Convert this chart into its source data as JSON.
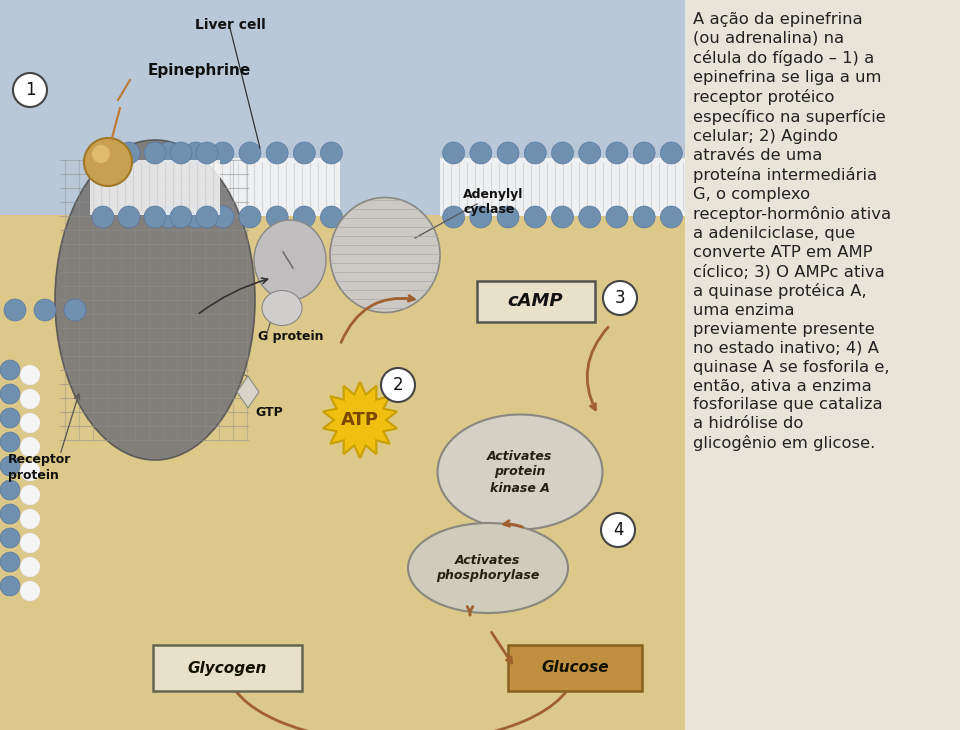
{
  "bg_color": "#dcc888",
  "exterior_color": "#b8c8d8",
  "receptor_dark": "#7a7878",
  "receptor_light": "#989898",
  "membrane_bead": "#7090b0",
  "membrane_tail": "#f0f0f0",
  "g_protein_fill": "#c8c8c8",
  "adenylyl_fill": "#d0ccc8",
  "camp_fill": "#e8e0c8",
  "atp_yellow": "#f0c010",
  "atp_spike": "#c8a000",
  "atp_text": "#7a4800",
  "ellipse_fill": "#d0ccc0",
  "ellipse_edge": "#888880",
  "glycogen_fill": "#e8e0c8",
  "glucose_fill": "#c09040",
  "arrow_brown": "#a06030",
  "text_dark": "#222222",
  "text_medium": "#333333",
  "step_circle_fill": "#ffffff",
  "step_circle_edge": "#444444",
  "label_color": "#111111",
  "epi_fill": "#c8a050",
  "epi_edge": "#a07828",
  "right_panel_bg": "#e8e4d8",
  "description_text": "A ação da epinefrina\n(ou adrenalina) na\ncélula do fígado – 1) a\nepinefrina se liga a um\nreceptor protéico\nespecífico na superfície\ncelular; 2) Agindo\natravés de uma\nproteína intermediária\nG, o complexo\nreceptor-hormônio ativa\na adenilciclase, que\nconverte ATP em AMP\ncíclico; 3) O AMPc ativa\na quinase protéica A,\numa enzima\npreviamente presente\nno estado inativo; 4) A\nquinase A se fosforila e,\nentão, ativa a enzima\nfosforilase que cataliza\na hidrólise do\nglicogênio em glicose.",
  "label_liver_cell": "Liver cell",
  "label_epinephrine": "Epinephrine",
  "label_receptor_protein": "Receptor\nprotein",
  "label_g_protein": "G protein",
  "label_gtp": "GTP",
  "label_adenylyl_cyclase": "Adenylyl\ncyclase",
  "label_camp": "cAMP",
  "label_atp": "ATP",
  "label_activates_pk": "Activates\nprotein\nkinase A",
  "label_activates_ph": "Activates\nphosphorylase",
  "label_glycogen": "Glycogen",
  "label_glucose": "Glucose",
  "fig_width": 9.6,
  "fig_height": 7.3,
  "dpi": 100
}
